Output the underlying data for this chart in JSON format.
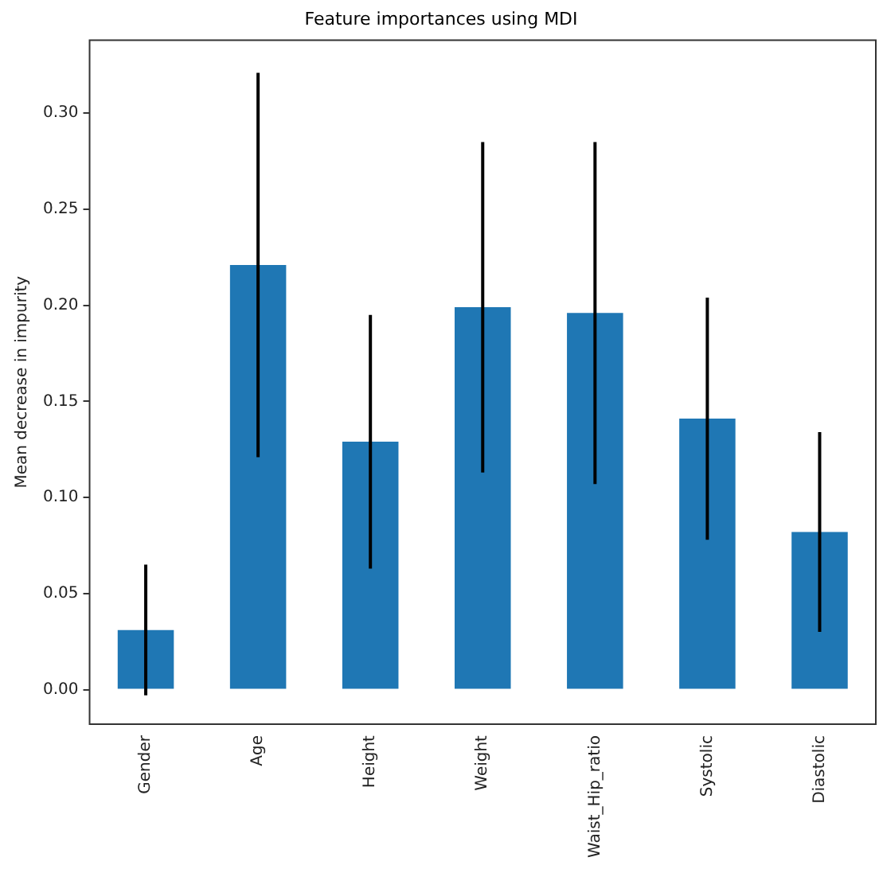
{
  "chart_data": {
    "type": "bar",
    "title": "Feature importances using MDI",
    "ylabel": "Mean decrease in impurity",
    "categories": [
      "Gender",
      "Age",
      "Height",
      "Weight",
      "Waist_Hip_ratio",
      "Systolic",
      "Diastolic"
    ],
    "values": [
      0.031,
      0.221,
      0.129,
      0.199,
      0.196,
      0.141,
      0.082
    ],
    "errors": [
      0.034,
      0.1,
      0.066,
      0.086,
      0.089,
      0.063,
      0.052
    ],
    "color": "#1f77b4",
    "ylim": [
      -0.018,
      0.338
    ],
    "yticks": [
      {
        "value": 0,
        "label": "0.00"
      },
      {
        "value": 0.05,
        "label": "0.05"
      },
      {
        "value": 0.1,
        "label": "0.10"
      },
      {
        "value": 0.15,
        "label": "0.15"
      },
      {
        "value": 0.2,
        "label": "0.20"
      },
      {
        "value": 0.25,
        "label": "0.25"
      },
      {
        "value": 0.3,
        "label": "0.30"
      }
    ],
    "grid": false,
    "legend": false
  }
}
